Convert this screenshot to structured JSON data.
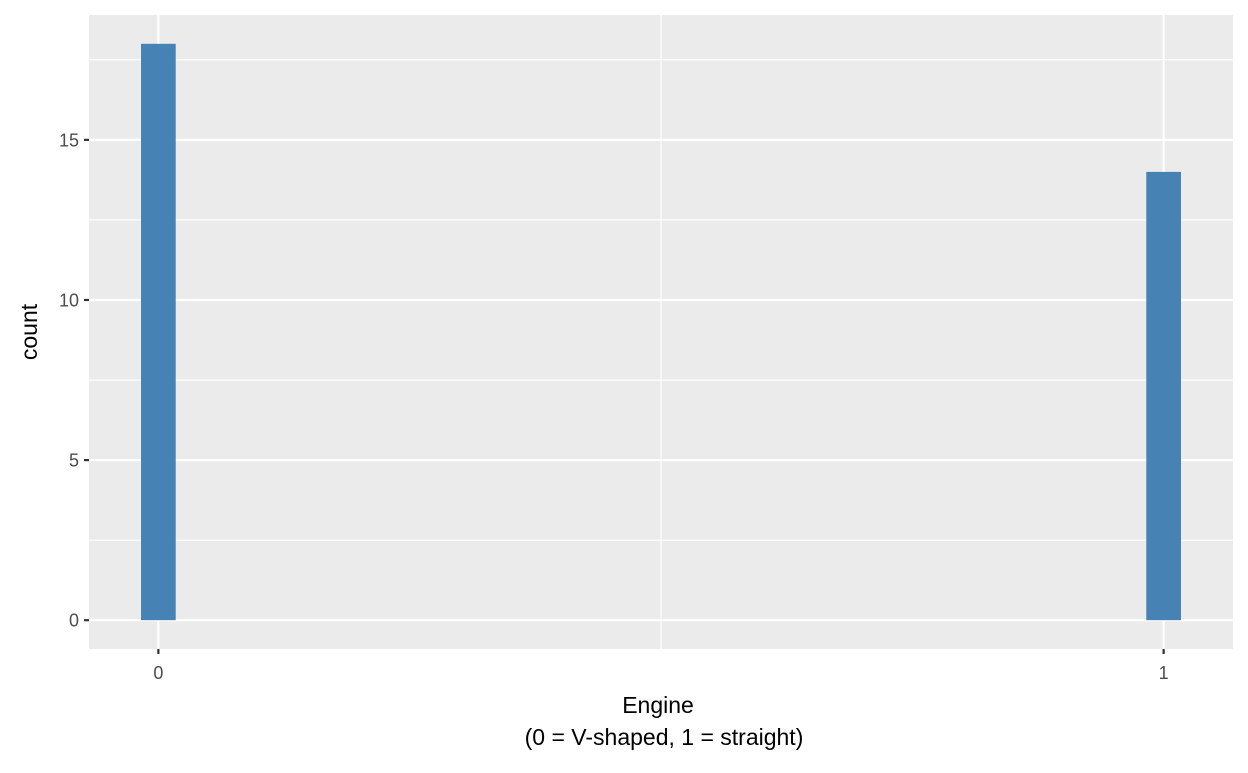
{
  "chart_data": {
    "type": "bar",
    "x_ticks": [
      "0",
      "1"
    ],
    "x": [
      0,
      1
    ],
    "values": [
      18,
      14
    ],
    "xlabel_lines": [
      "Engine",
      "(0 = V-shaped, 1 = straight)"
    ],
    "ylabel": "count",
    "y_ticks": [
      0,
      5,
      10,
      15
    ],
    "xlim": [
      -0.069,
      1.069
    ],
    "ylim": [
      -0.9,
      18.9
    ],
    "grid": true,
    "legend": "none",
    "colors": {
      "bar": "#4682b4",
      "panel": "#ebebeb",
      "grid": "#ffffff",
      "tick_text": "#4d4d4d",
      "axis_title": "#000000"
    }
  }
}
